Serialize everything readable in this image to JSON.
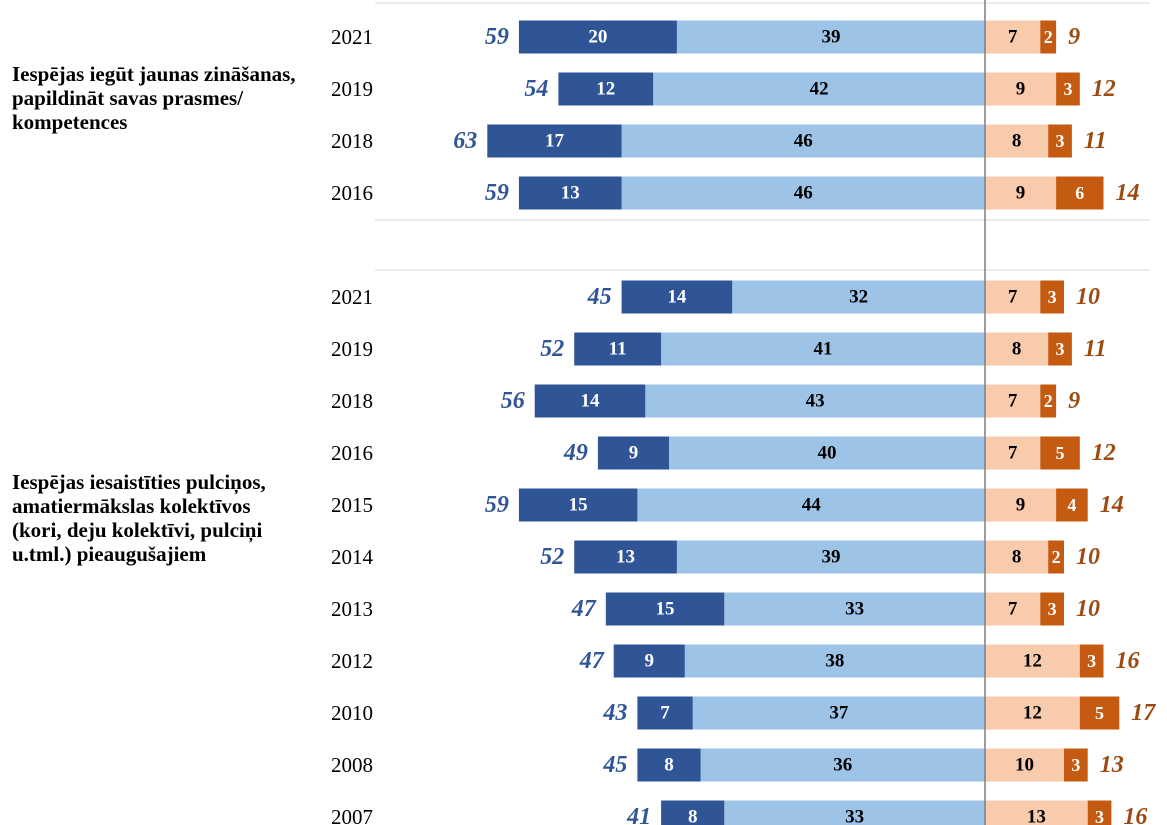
{
  "colors": {
    "strong_positive": "#2f5597",
    "positive": "#9dc3e6",
    "negative": "#f8cbad",
    "strong_negative": "#c55a11",
    "total_positive_text": "#2f5597",
    "total_negative_text": "#9c4a12"
  },
  "chart_data": {
    "type": "bar",
    "orientation": "horizontal",
    "diverging": true,
    "grid": false,
    "groups": [
      {
        "label": "Iespējas iegūt jaunas zināšanas, papildināt savas prasmes/ kompetences",
        "rows": [
          {
            "year": "2021",
            "positive_total": 59,
            "strong_positive": 20,
            "positive": 39,
            "negative": 7,
            "strong_negative": 2,
            "negative_total": 9
          },
          {
            "year": "2019",
            "positive_total": 54,
            "strong_positive": 12,
            "positive": 42,
            "negative": 9,
            "strong_negative": 3,
            "negative_total": 12
          },
          {
            "year": "2018",
            "positive_total": 63,
            "strong_positive": 17,
            "positive": 46,
            "negative": 8,
            "strong_negative": 3,
            "negative_total": 11
          },
          {
            "year": "2016",
            "positive_total": 59,
            "strong_positive": 13,
            "positive": 46,
            "negative": 9,
            "strong_negative": 6,
            "negative_total": 14
          }
        ]
      },
      {
        "label": "Iespējas iesaistīties pulciņos, amatiermākslas kolektīvos (kori, deju kolektīvi, pulciņi u.tml.) pieaugušajiem",
        "rows": [
          {
            "year": "2021",
            "positive_total": 45,
            "strong_positive": 14,
            "positive": 32,
            "negative": 7,
            "strong_negative": 3,
            "negative_total": 10
          },
          {
            "year": "2019",
            "positive_total": 52,
            "strong_positive": 11,
            "positive": 41,
            "negative": 8,
            "strong_negative": 3,
            "negative_total": 11
          },
          {
            "year": "2018",
            "positive_total": 56,
            "strong_positive": 14,
            "positive": 43,
            "negative": 7,
            "strong_negative": 2,
            "negative_total": 9
          },
          {
            "year": "2016",
            "positive_total": 49,
            "strong_positive": 9,
            "positive": 40,
            "negative": 7,
            "strong_negative": 5,
            "negative_total": 12
          },
          {
            "year": "2015",
            "positive_total": 59,
            "strong_positive": 15,
            "positive": 44,
            "negative": 9,
            "strong_negative": 4,
            "negative_total": 14
          },
          {
            "year": "2014",
            "positive_total": 52,
            "strong_positive": 13,
            "positive": 39,
            "negative": 8,
            "strong_negative": 2,
            "negative_total": 10
          },
          {
            "year": "2013",
            "positive_total": 47,
            "strong_positive": 15,
            "positive": 33,
            "negative": 7,
            "strong_negative": 3,
            "negative_total": 10
          },
          {
            "year": "2012",
            "positive_total": 47,
            "strong_positive": 9,
            "positive": 38,
            "negative": 12,
            "strong_negative": 3,
            "negative_total": 16
          },
          {
            "year": "2010",
            "positive_total": 43,
            "strong_positive": 7,
            "positive": 37,
            "negative": 12,
            "strong_negative": 5,
            "negative_total": 17
          },
          {
            "year": "2008",
            "positive_total": 45,
            "strong_positive": 8,
            "positive": 36,
            "negative": 10,
            "strong_negative": 3,
            "negative_total": 13
          },
          {
            "year": "2007",
            "positive_total": 41,
            "strong_positive": 8,
            "positive": 33,
            "negative": 13,
            "strong_negative": 3,
            "negative_total": 16
          }
        ]
      }
    ]
  }
}
